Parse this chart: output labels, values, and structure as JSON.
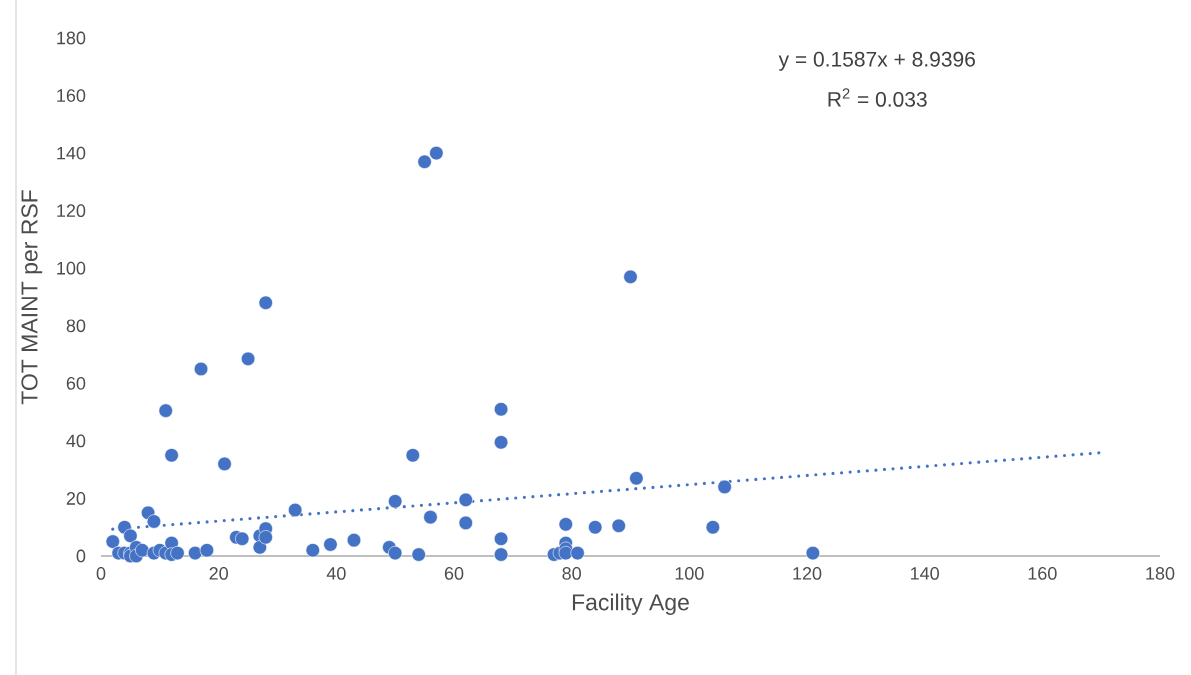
{
  "chart_data": {
    "type": "scatter",
    "xlabel": "Facility Age",
    "ylabel": "TOT MAINT per RSF",
    "xlim": [
      0,
      180
    ],
    "ylim": [
      0,
      180
    ],
    "xticks": [
      0,
      20,
      40,
      60,
      80,
      100,
      120,
      140,
      160,
      180
    ],
    "yticks": [
      0,
      20,
      40,
      60,
      80,
      100,
      120,
      140,
      160,
      180
    ],
    "grid": false,
    "marker": "circle",
    "annotations": [
      "y = 0.1587x + 8.9396",
      "R$^{2}$ = 0.033"
    ],
    "series": [
      {
        "color": "#4472c4",
        "x": [
          2,
          3,
          4,
          4,
          5,
          5,
          5,
          6,
          6,
          7,
          8,
          9,
          9,
          10,
          11,
          11,
          12,
          12,
          12,
          13,
          16,
          17,
          18,
          21,
          23,
          24,
          25,
          27,
          27,
          28,
          28,
          28,
          33,
          36,
          39,
          43,
          49,
          50,
          50,
          53,
          54,
          55,
          56,
          57,
          62,
          62,
          68,
          68,
          68,
          68,
          77,
          78,
          79,
          79,
          79,
          79,
          81,
          84,
          88,
          90,
          91,
          104,
          106,
          121
        ],
        "values": [
          5,
          1,
          10,
          1,
          7,
          1,
          0,
          3,
          0,
          2,
          15,
          12,
          1,
          2,
          50.5,
          1,
          35,
          4.5,
          0.5,
          1,
          1,
          65,
          2,
          32,
          6.5,
          6,
          68.5,
          7,
          3,
          88,
          9.5,
          6.5,
          16,
          2,
          4,
          5.5,
          3,
          19,
          1,
          35,
          0.5,
          137,
          13.5,
          140,
          19.5,
          11.5,
          51,
          39.5,
          6,
          0.5,
          0.5,
          1,
          11,
          4.5,
          2.5,
          1,
          1,
          10,
          10.5,
          97,
          27,
          10,
          24,
          1
        ]
      },
      {
        "type": "line",
        "color": "#4472c4",
        "line_style": "dotted",
        "marker": "none",
        "x": [
          2,
          170
        ],
        "values": [
          9.3,
          35.9
        ]
      }
    ]
  }
}
